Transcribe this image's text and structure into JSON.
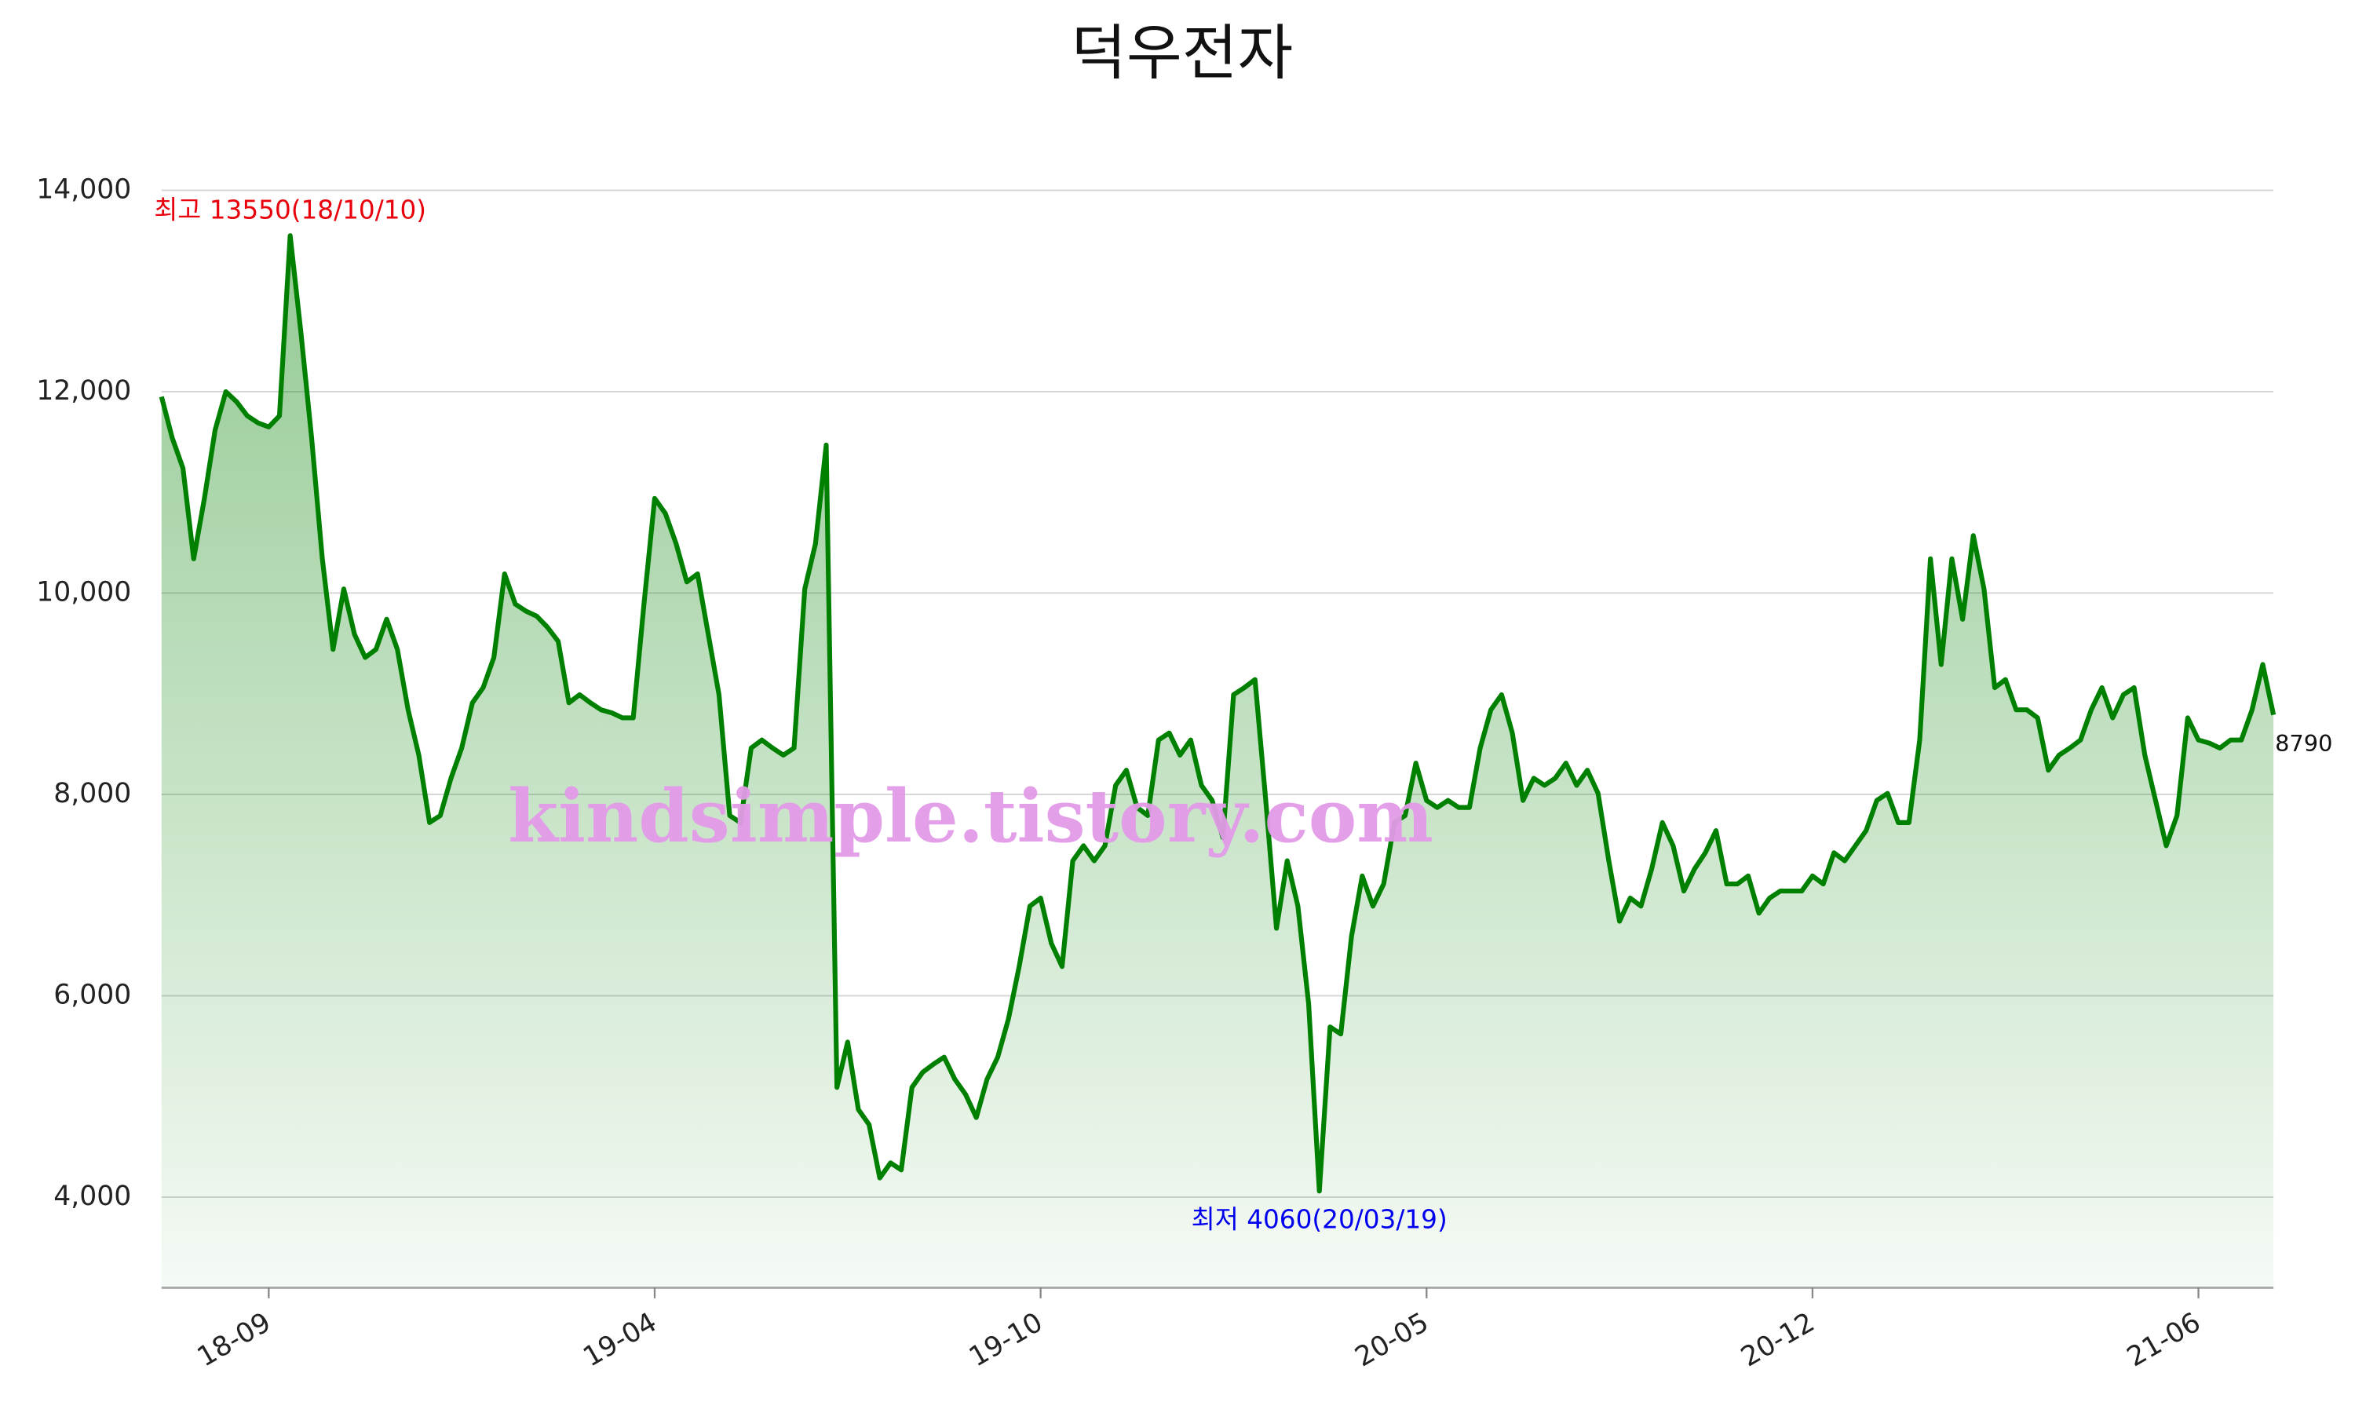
{
  "chart_data": {
    "type": "line",
    "title": "덕우전자",
    "categories": [
      null,
      null,
      null,
      null,
      null,
      null,
      null,
      null,
      null,
      null,
      "18-09",
      null,
      null,
      null,
      null,
      null,
      null,
      null,
      null,
      null,
      null,
      null,
      null,
      null,
      null,
      null,
      null,
      null,
      null,
      null,
      null,
      null,
      null,
      null,
      null,
      null,
      null,
      null,
      null,
      null,
      null,
      null,
      null,
      null,
      null,
      null,
      "19-04",
      null,
      null,
      null,
      null,
      null,
      null,
      null,
      null,
      null,
      null,
      null,
      null,
      null,
      null,
      null,
      null,
      null,
      null,
      null,
      null,
      null,
      null,
      null,
      null,
      null,
      null,
      null,
      null,
      null,
      null,
      null,
      null,
      null,
      null,
      null,
      "19-10",
      null,
      null,
      null,
      null,
      null,
      null,
      null,
      null,
      null,
      null,
      null,
      null,
      null,
      null,
      null,
      null,
      null,
      null,
      null,
      null,
      null,
      null,
      null,
      null,
      null,
      null,
      null,
      null,
      null,
      null,
      null,
      null,
      null,
      null,
      null,
      "20-05",
      null,
      null,
      null,
      null,
      null,
      null,
      null,
      null,
      null,
      null,
      null,
      null,
      null,
      null,
      null,
      null,
      null,
      null,
      null,
      null,
      null,
      null,
      null,
      null,
      null,
      null,
      null,
      null,
      null,
      null,
      null,
      null,
      null,
      null,
      null,
      "20-12",
      null,
      null,
      null,
      null,
      null,
      null,
      null,
      null,
      null,
      null,
      null,
      null,
      null,
      null,
      null,
      null,
      null,
      null,
      null,
      null,
      null,
      null,
      null,
      null,
      null,
      null,
      null,
      null,
      null,
      null,
      null,
      null,
      null,
      null,
      null,
      "21-06",
      null,
      null,
      null,
      null,
      null,
      null,
      null
    ],
    "values": [
      11950,
      11540,
      11240,
      10340,
      10940,
      11620,
      12000,
      11900,
      11760,
      11690,
      11650,
      11760,
      13550,
      12590,
      11540,
      10340,
      9440,
      10040,
      9590,
      9360,
      9440,
      9740,
      9440,
      8840,
      8390,
      7720,
      7790,
      8160,
      8460,
      8910,
      9060,
      9360,
      10190,
      9890,
      9820,
      9770,
      9660,
      9520,
      8910,
      8990,
      8910,
      8840,
      8810,
      8760,
      8760,
      9890,
      10940,
      10790,
      10490,
      10110,
      10190,
      9590,
      8990,
      7790,
      7720,
      8460,
      8540,
      8460,
      8390,
      8460,
      10040,
      10490,
      11470,
      5090,
      5540,
      4870,
      4720,
      4190,
      4340,
      4270,
      5090,
      5240,
      5320,
      5390,
      5170,
      5020,
      4790,
      5170,
      5390,
      5770,
      6290,
      6890,
      6970,
      6520,
      6290,
      7340,
      7490,
      7340,
      7490,
      8090,
      8240,
      7870,
      7790,
      8540,
      8610,
      8390,
      8540,
      8090,
      7940,
      7570,
      8990,
      9060,
      9140,
      7940,
      6670,
      7340,
      6890,
      5920,
      4060,
      5690,
      5620,
      6590,
      7190,
      6890,
      7110,
      7720,
      7790,
      8310,
      7940,
      7870,
      7940,
      7870,
      7870,
      8460,
      8840,
      8990,
      8610,
      7940,
      8160,
      8090,
      8160,
      8310,
      8090,
      8240,
      8010,
      7340,
      6740,
      6970,
      6890,
      7260,
      7720,
      7490,
      7040,
      7260,
      7420,
      7640,
      7110,
      7110,
      7190,
      6820,
      6970,
      7040,
      7040,
      7040,
      7190,
      7110,
      7420,
      7340,
      7490,
      7640,
      7940,
      8010,
      7720,
      7720,
      8540,
      10340,
      9290,
      10340,
      9740,
      10570,
      10040,
      9060,
      9140,
      8840,
      8840,
      8760,
      8240,
      8390,
      8460,
      8540,
      8840,
      9060,
      8760,
      8990,
      9060,
      8390,
      7940,
      7490,
      7790,
      8760,
      8540,
      8510,
      8460,
      8540,
      8540,
      8840,
      9290,
      8790
    ],
    "color": "#008000",
    "ylim": [
      3100,
      14400
    ],
    "yticks": [
      {
        "value": 4000,
        "label": "4,000"
      },
      {
        "value": 6000,
        "label": "6,000"
      },
      {
        "value": 8000,
        "label": "8,000"
      },
      {
        "value": 10000,
        "label": "10,000"
      },
      {
        "value": 12000,
        "label": "12,000"
      },
      {
        "value": 14000,
        "label": "14,000"
      }
    ],
    "grid": true,
    "annotations": [
      {
        "text": "최고 13550(18/10/10)",
        "color": "#e8000b",
        "at": "max"
      },
      {
        "text": "최저 4060(20/03/19)",
        "color": "#0000ee",
        "at": "min"
      }
    ],
    "watermark": "kindsimple.tistory.com"
  }
}
